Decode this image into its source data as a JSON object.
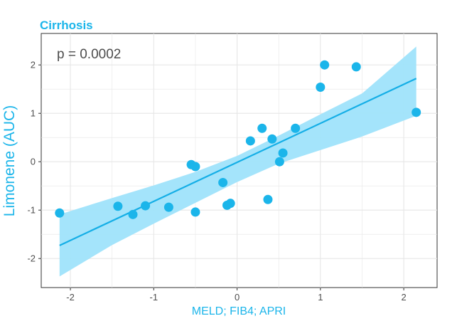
{
  "colors": {
    "accent": "#1bb5ea",
    "band": "#9fe3fb",
    "line": "#14aee6",
    "grid": "#e6e6e6",
    "tick_text": "#4d4d4d"
  },
  "chart_data": {
    "type": "scatter",
    "title": "Cirrhosis",
    "xlabel": "MELD; FIB4; APRI",
    "ylabel": "Limonene (AUC)",
    "annotation": "p = 0.0002",
    "xlim": [
      -2.35,
      2.4
    ],
    "ylim": [
      -2.6,
      2.65
    ],
    "xticks": [
      -2,
      -1,
      0,
      1,
      2
    ],
    "yticks": [
      -2,
      -1,
      0,
      1,
      2
    ],
    "grid": true,
    "points": [
      {
        "x": -2.13,
        "y": -1.06
      },
      {
        "x": -1.43,
        "y": -0.92
      },
      {
        "x": -1.25,
        "y": -1.09
      },
      {
        "x": -1.1,
        "y": -0.91
      },
      {
        "x": -0.82,
        "y": -0.94
      },
      {
        "x": -0.55,
        "y": -0.06
      },
      {
        "x": -0.5,
        "y": -0.1
      },
      {
        "x": -0.5,
        "y": -1.04
      },
      {
        "x": -0.17,
        "y": -0.43
      },
      {
        "x": -0.12,
        "y": -0.9
      },
      {
        "x": -0.08,
        "y": -0.86
      },
      {
        "x": 0.16,
        "y": 0.43
      },
      {
        "x": 0.3,
        "y": 0.69
      },
      {
        "x": 0.37,
        "y": -0.78
      },
      {
        "x": 0.42,
        "y": 0.47
      },
      {
        "x": 0.51,
        "y": 0.0
      },
      {
        "x": 0.55,
        "y": 0.18
      },
      {
        "x": 0.7,
        "y": 0.69
      },
      {
        "x": 1.0,
        "y": 1.54
      },
      {
        "x": 1.05,
        "y": 2.0
      },
      {
        "x": 1.43,
        "y": 1.96
      },
      {
        "x": 2.15,
        "y": 1.02
      }
    ],
    "fit": {
      "x": [
        -2.13,
        2.15
      ],
      "y": [
        -1.73,
        1.72
      ]
    },
    "confidence_band": {
      "x": [
        -2.13,
        -1.5,
        -1.0,
        -0.5,
        0.0,
        0.5,
        1.0,
        1.5,
        2.15
      ],
      "lower": [
        -2.37,
        -1.72,
        -1.28,
        -0.85,
        -0.42,
        -0.04,
        0.24,
        0.52,
        0.95
      ],
      "upper": [
        -1.09,
        -0.75,
        -0.49,
        -0.21,
        0.12,
        0.54,
        0.98,
        1.41,
        2.38
      ]
    }
  }
}
